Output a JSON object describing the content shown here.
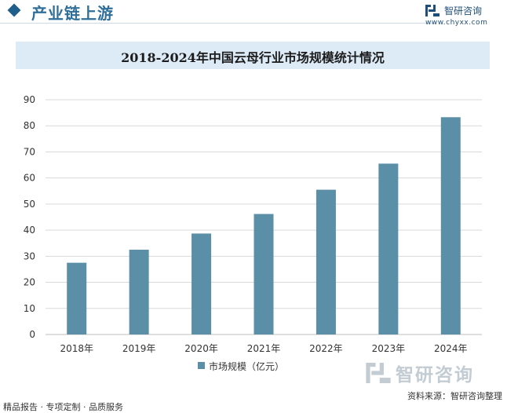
{
  "header": {
    "title": "产业链上游"
  },
  "brand": {
    "name": "智研咨询",
    "url": "www.chyxx.com",
    "logo_icon": "chyxx-logo-icon"
  },
  "chart_data": {
    "type": "bar",
    "title": "2018-2024年中国云母行业市场规模统计情况",
    "categories": [
      "2018年",
      "2019年",
      "2020年",
      "2021年",
      "2022年",
      "2023年",
      "2024年"
    ],
    "series": [
      {
        "name": "市场规模（亿元）",
        "values": [
          27.5,
          32.5,
          38.7,
          46.2,
          55.5,
          65.5,
          83.3
        ],
        "color": "#5b8fa8"
      }
    ],
    "y_ticks": [
      "0",
      "10",
      "20",
      "30",
      "40",
      "50",
      "60",
      "70",
      "80",
      "90"
    ],
    "ylim": [
      0,
      90
    ],
    "grid": true,
    "legend_position": "bottom-center",
    "gridline_color": "#d9d9d9",
    "band_color": "#ddebf7"
  },
  "footer": {
    "source": "资料来源：智研咨询整理",
    "tagline": "精品报告 · 专项定制 · 品质服务"
  }
}
